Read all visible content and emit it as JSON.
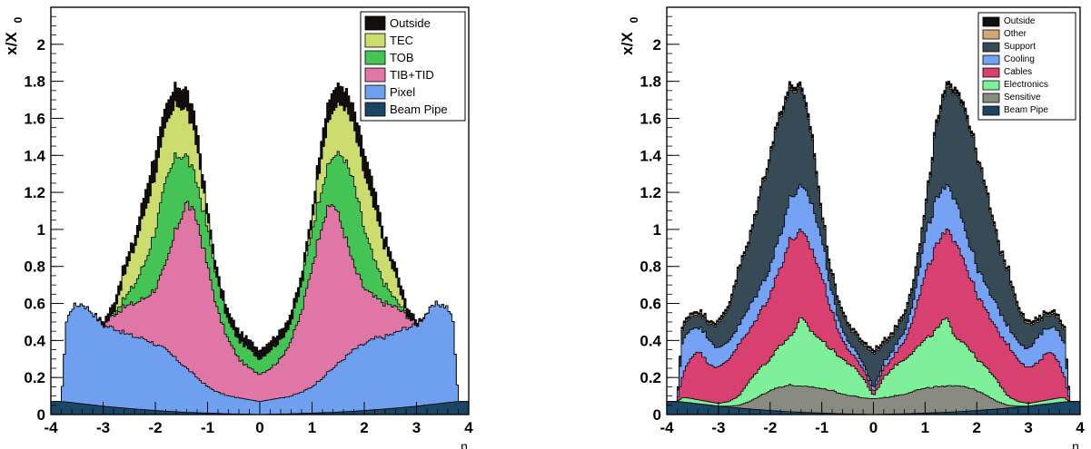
{
  "chart_data": [
    {
      "type": "area",
      "stacked": true,
      "x_range": [
        -4,
        4
      ],
      "ylim": [
        0,
        2.2
      ],
      "xlabel": "η",
      "ylabel": "x/X",
      "ylabel_subscript": "0",
      "x_ticks": [
        "-4",
        "-3",
        "-2",
        "-1",
        "0",
        "1",
        "2",
        "3",
        "4"
      ],
      "y_ticks": [
        "0",
        "0.2",
        "0.4",
        "0.6",
        "0.8",
        "1",
        "1.2",
        "1.4",
        "1.6",
        "1.8",
        "2"
      ],
      "x_tick_values": [
        -4,
        -3,
        -2,
        -1,
        0,
        1,
        2,
        3,
        4
      ],
      "y_tick_values": [
        0,
        0.2,
        0.4,
        0.6,
        0.8,
        1,
        1.2,
        1.4,
        1.6,
        1.8,
        2
      ],
      "legend_position": "top-right",
      "legend": [
        "Outside",
        "TEC",
        "TOB",
        "TIB+TID",
        "Pixel",
        "Beam Pipe"
      ],
      "eta": [
        0,
        0.2,
        0.4,
        0.6,
        0.8,
        1.0,
        1.2,
        1.4,
        1.6,
        1.8,
        2.0,
        2.2,
        2.4,
        2.6,
        2.8,
        3.0,
        3.2,
        3.4,
        3.6,
        3.7,
        3.8,
        4.0
      ],
      "series": [
        {
          "name": "Beam Pipe",
          "color": "#1b4565",
          "cumulative": [
            0.0,
            0.002,
            0.003,
            0.004,
            0.006,
            0.008,
            0.01,
            0.012,
            0.015,
            0.018,
            0.022,
            0.026,
            0.03,
            0.035,
            0.04,
            0.045,
            0.052,
            0.058,
            0.065,
            0.068,
            0.07,
            0.07
          ]
        },
        {
          "name": "Pixel",
          "color": "#6fa0f0",
          "cumulative": [
            0.07,
            0.08,
            0.09,
            0.1,
            0.12,
            0.15,
            0.2,
            0.25,
            0.3,
            0.35,
            0.38,
            0.41,
            0.42,
            0.44,
            0.47,
            0.48,
            0.55,
            0.6,
            0.58,
            0.5,
            0.07,
            0.07
          ]
        },
        {
          "name": "TIB+TID",
          "color": "#e076a6",
          "cumulative": [
            0.22,
            0.25,
            0.3,
            0.4,
            0.55,
            0.8,
            1.05,
            1.15,
            1.0,
            0.8,
            0.68,
            0.63,
            0.6,
            0.58,
            0.54,
            0.48,
            0.55,
            0.6,
            0.58,
            0.5,
            0.07,
            0.07
          ]
        },
        {
          "name": "TOB",
          "color": "#44c454",
          "cumulative": [
            0.3,
            0.35,
            0.4,
            0.5,
            0.7,
            1.0,
            1.25,
            1.4,
            1.4,
            1.25,
            1.0,
            0.82,
            0.7,
            0.62,
            0.55,
            0.48,
            0.55,
            0.6,
            0.58,
            0.5,
            0.07,
            0.07
          ]
        },
        {
          "name": "TEC",
          "color": "#ccdd6e",
          "cumulative": [
            0.3,
            0.35,
            0.4,
            0.5,
            0.7,
            1.05,
            1.45,
            1.65,
            1.68,
            1.55,
            1.3,
            1.1,
            0.9,
            0.75,
            0.55,
            0.48,
            0.55,
            0.6,
            0.58,
            0.5,
            0.07,
            0.07
          ]
        },
        {
          "name": "Outside",
          "color": "#130d0b",
          "cumulative": [
            0.35,
            0.4,
            0.45,
            0.55,
            0.75,
            1.1,
            1.55,
            1.76,
            1.78,
            1.65,
            1.42,
            1.2,
            0.95,
            0.8,
            0.6,
            0.5,
            0.55,
            0.6,
            0.58,
            0.5,
            0.07,
            0.07
          ]
        }
      ]
    },
    {
      "type": "area",
      "stacked": true,
      "x_range": [
        -4,
        4
      ],
      "ylim": [
        0,
        2.2
      ],
      "xlabel": "η",
      "ylabel": "x/X",
      "ylabel_subscript": "0",
      "x_ticks": [
        "-4",
        "-3",
        "-2",
        "-1",
        "0",
        "1",
        "2",
        "3",
        "4"
      ],
      "y_ticks": [
        "0",
        "0.2",
        "0.4",
        "0.6",
        "0.8",
        "1",
        "1.2",
        "1.4",
        "1.6",
        "1.8",
        "2"
      ],
      "x_tick_values": [
        -4,
        -3,
        -2,
        -1,
        0,
        1,
        2,
        3,
        4
      ],
      "y_tick_values": [
        0,
        0.2,
        0.4,
        0.6,
        0.8,
        1,
        1.2,
        1.4,
        1.6,
        1.8,
        2
      ],
      "legend_position": "top-right",
      "legend": [
        "Outside",
        "Other",
        "Support",
        "Cooling",
        "Cables",
        "Electronics",
        "Sensitive",
        "Beam Pipe"
      ],
      "eta": [
        0,
        0.2,
        0.4,
        0.6,
        0.8,
        1.0,
        1.2,
        1.4,
        1.6,
        1.8,
        2.0,
        2.2,
        2.4,
        2.6,
        2.8,
        3.0,
        3.2,
        3.4,
        3.6,
        3.7,
        3.8,
        4.0
      ],
      "series": [
        {
          "name": "Beam Pipe",
          "color": "#1b4565",
          "cumulative": [
            0.0,
            0.002,
            0.003,
            0.004,
            0.006,
            0.008,
            0.01,
            0.012,
            0.015,
            0.018,
            0.022,
            0.026,
            0.03,
            0.035,
            0.04,
            0.045,
            0.052,
            0.058,
            0.065,
            0.068,
            0.07,
            0.07
          ]
        },
        {
          "name": "Sensitive",
          "color": "#898a80",
          "cumulative": [
            0.085,
            0.09,
            0.1,
            0.11,
            0.13,
            0.14,
            0.15,
            0.15,
            0.16,
            0.15,
            0.13,
            0.1,
            0.07,
            0.05,
            0.045,
            0.045,
            0.052,
            0.058,
            0.065,
            0.068,
            0.07,
            0.07
          ]
        },
        {
          "name": "Electronics",
          "color": "#7ef09a",
          "cumulative": [
            0.1,
            0.2,
            0.26,
            0.3,
            0.35,
            0.4,
            0.45,
            0.52,
            0.42,
            0.38,
            0.3,
            0.25,
            0.18,
            0.1,
            0.07,
            0.06,
            0.07,
            0.08,
            0.09,
            0.09,
            0.07,
            0.07
          ]
        },
        {
          "name": "Cables",
          "color": "#d84070",
          "cumulative": [
            0.12,
            0.25,
            0.32,
            0.4,
            0.55,
            0.75,
            0.9,
            0.98,
            0.95,
            0.8,
            0.65,
            0.55,
            0.45,
            0.38,
            0.3,
            0.25,
            0.28,
            0.35,
            0.28,
            0.2,
            0.07,
            0.07
          ]
        },
        {
          "name": "Cooling",
          "color": "#76a2f5",
          "cumulative": [
            0.14,
            0.28,
            0.36,
            0.45,
            0.65,
            0.95,
            1.15,
            1.22,
            1.18,
            0.98,
            0.8,
            0.68,
            0.58,
            0.48,
            0.4,
            0.35,
            0.42,
            0.48,
            0.45,
            0.38,
            0.07,
            0.07
          ]
        },
        {
          "name": "Support",
          "color": "#364b55",
          "cumulative": [
            0.33,
            0.38,
            0.44,
            0.54,
            0.74,
            1.08,
            1.52,
            1.74,
            1.76,
            1.62,
            1.4,
            1.18,
            0.93,
            0.78,
            0.58,
            0.48,
            0.5,
            0.55,
            0.52,
            0.45,
            0.07,
            0.07
          ]
        },
        {
          "name": "Other",
          "color": "#d4a674",
          "cumulative": [
            0.34,
            0.39,
            0.45,
            0.55,
            0.75,
            1.09,
            1.53,
            1.75,
            1.77,
            1.63,
            1.41,
            1.19,
            0.94,
            0.79,
            0.59,
            0.49,
            0.51,
            0.56,
            0.53,
            0.46,
            0.07,
            0.07
          ]
        },
        {
          "name": "Outside",
          "color": "#130d0b",
          "cumulative": [
            0.35,
            0.4,
            0.46,
            0.56,
            0.76,
            1.1,
            1.55,
            1.77,
            1.79,
            1.65,
            1.42,
            1.2,
            0.95,
            0.8,
            0.6,
            0.5,
            0.52,
            0.57,
            0.54,
            0.47,
            0.07,
            0.07
          ]
        }
      ]
    }
  ]
}
